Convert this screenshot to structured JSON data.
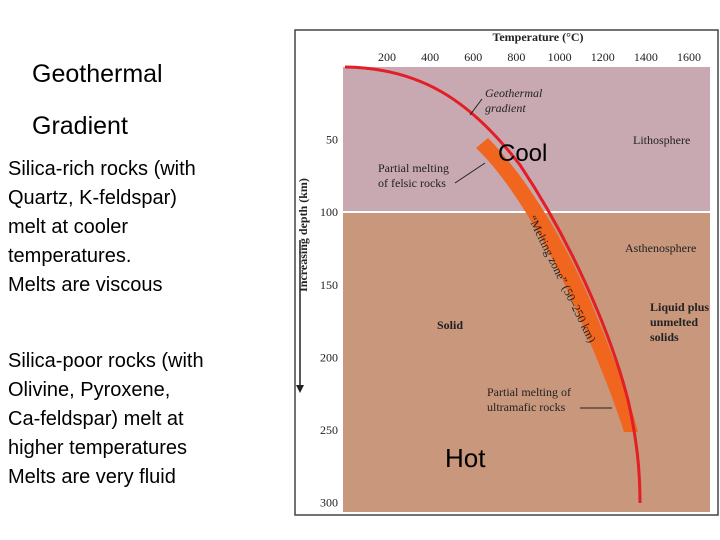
{
  "slide": {
    "title_lines": [
      "Geothermal",
      "Gradient"
    ],
    "paragraphs": [
      [
        "Silica-rich rocks (with",
        "Quartz, K-feldspar)",
        "melt at cooler",
        "temperatures.",
        "Melts are viscous"
      ],
      [
        "Silica-poor rocks (with",
        "Olivine, Pyroxene,",
        "Ca-feldspar) melt at",
        "higher temperatures",
        "Melts are very fluid"
      ]
    ]
  },
  "figure": {
    "x_axis_label": "Temperature (°C)",
    "y_axis_label": "Increasing depth (km)",
    "xticks": [
      200,
      400,
      600,
      800,
      1000,
      1200,
      1400,
      1600
    ],
    "yticks": [
      50,
      100,
      150,
      200,
      250,
      300
    ],
    "labels": {
      "geothermal_gradient": [
        "Geothermal",
        "gradient"
      ],
      "felsic": [
        "Partial melting",
        "of felsic rocks"
      ],
      "cool": "Cool",
      "lithosphere": "Lithosphere",
      "asthenosphere": "Asthenosphere",
      "liquid": [
        "Liquid plus",
        "unmelted",
        "solids"
      ],
      "solid": "Solid",
      "ultramafic": [
        "Partial melting of",
        "ultramafic rocks"
      ],
      "hot": "Hot",
      "melting_zone": "“Melting zone” (50–250 km)"
    }
  }
}
